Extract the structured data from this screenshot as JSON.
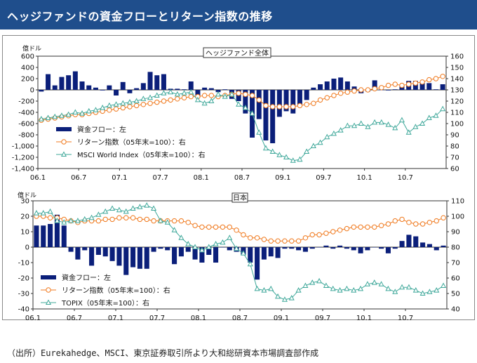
{
  "header": {
    "title": "ヘッジファンドの資金フローとリターン指数の推移"
  },
  "source_note": "（出所）Eurekahedge、MSCI、東京証券取引所より大和総研資本市場調査部作成",
  "colors": {
    "banner": "#1f4e8c",
    "bar": "#0b1f7a",
    "return_line": "#f07a1f",
    "index_line": "#3fa89a"
  },
  "chart_data": [
    {
      "type": "bar",
      "title": "ヘッジファンド全体",
      "yunit_left": "億ドル",
      "ylim_left": [
        -1400,
        600
      ],
      "yticks_left": [
        -1400,
        -1200,
        -1000,
        -800,
        -600,
        -400,
        -200,
        0,
        200,
        400,
        600
      ],
      "ylim_right": [
        60,
        160
      ],
      "yticks_right": [
        60,
        70,
        80,
        90,
        100,
        110,
        120,
        130,
        140,
        150,
        160
      ],
      "x_tick_labels": [
        "06.1",
        "06.7",
        "07.1",
        "07.7",
        "08.1",
        "08.7",
        "09.1",
        "09.7",
        "10.1",
        "10.7"
      ],
      "legend": [
        "資金フロー：左",
        "リターン指数（05年末=100）：右",
        "MSCI World Index（05年末=100）：右"
      ],
      "series": [
        {
          "name": "資金フロー：左",
          "axis": "left",
          "values": [
            -30,
            280,
            80,
            230,
            260,
            330,
            150,
            80,
            40,
            -10,
            80,
            -100,
            140,
            -60,
            30,
            120,
            320,
            260,
            280,
            20,
            20,
            10,
            150,
            -120,
            40,
            30,
            -40,
            10,
            -160,
            -200,
            -420,
            -850,
            -520,
            -900,
            -950,
            -480,
            -380,
            -420,
            -300,
            -180,
            40,
            100,
            150,
            200,
            220,
            150,
            60,
            -60,
            -30,
            170,
            0,
            -10,
            10,
            70,
            160,
            160,
            150,
            120,
            10,
            100
          ]
        },
        {
          "name": "リターン指数（05年末=100）：右",
          "axis": "right",
          "values": [
            103,
            104,
            105,
            106,
            107,
            108,
            108,
            109,
            110,
            111,
            112,
            113,
            114,
            115,
            116,
            117,
            118,
            119,
            120,
            121,
            122,
            123,
            124,
            124,
            125,
            125,
            124,
            125,
            126,
            127,
            126,
            125,
            121,
            116,
            115,
            115,
            115,
            115,
            116,
            117,
            118,
            121,
            123,
            125,
            127,
            128,
            129,
            130,
            130,
            131,
            132,
            134,
            135,
            134,
            135,
            136,
            137,
            139,
            140,
            142
          ]
        },
        {
          "name": "MSCI World Index（05年末=100）：右",
          "axis": "right",
          "values": [
            104,
            105,
            106,
            107,
            108,
            110,
            109,
            111,
            112,
            114,
            116,
            117,
            118,
            119,
            120,
            122,
            123,
            125,
            127,
            128,
            126,
            127,
            128,
            121,
            118,
            120,
            126,
            124,
            126,
            117,
            114,
            109,
            92,
            78,
            75,
            72,
            70,
            67,
            68,
            75,
            80,
            83,
            88,
            91,
            94,
            98,
            98,
            100,
            97,
            101,
            101,
            99,
            96,
            103,
            92,
            97,
            100,
            105,
            107,
            113
          ]
        }
      ]
    },
    {
      "type": "bar",
      "title": "日本",
      "yunit_left": "億ドル",
      "ylim_left": [
        -40,
        30
      ],
      "yticks_left": [
        -40,
        -30,
        -20,
        -10,
        0,
        10,
        20,
        30
      ],
      "ylim_right": [
        40,
        110
      ],
      "yticks_right": [
        40,
        50,
        60,
        70,
        80,
        90,
        100,
        110
      ],
      "x_tick_labels": [
        "06.1",
        "06.7",
        "07.1",
        "07.7",
        "08.1",
        "08.7",
        "09.1",
        "09.7",
        "10.1",
        "10.7"
      ],
      "legend": [
        "資金フロー：左",
        "リターン指数（05年末=100）：右",
        "TOPIX（05年末=100）：右"
      ],
      "series": [
        {
          "name": "資金フロー：左",
          "axis": "left",
          "values": [
            14,
            14,
            15,
            21,
            14,
            -3,
            -8,
            -2,
            -12,
            -5,
            -6,
            -9,
            -12,
            -18,
            -13,
            -14,
            -14,
            -3,
            -1,
            -2,
            -11,
            -6,
            -3,
            -8,
            -10,
            -5,
            -10,
            0,
            -2,
            -3,
            -5,
            -10,
            -21,
            -8,
            -6,
            -7,
            -1,
            -1,
            -2,
            -3,
            -1,
            0,
            1,
            -1,
            1,
            -1,
            -2,
            -4,
            -2,
            0,
            -1,
            -4,
            -1,
            4,
            8,
            7,
            3,
            2,
            -2,
            1
          ]
        },
        {
          "name": "リターン指数（05年末=100）：右",
          "axis": "right",
          "values": [
            100,
            100,
            99,
            99,
            98,
            97,
            96,
            97,
            97,
            97,
            98,
            98,
            99,
            99,
            99,
            98,
            98,
            97,
            97,
            97,
            97,
            97,
            96,
            94,
            93,
            93,
            93,
            93,
            93,
            91,
            88,
            86,
            86,
            85,
            84,
            84,
            84,
            84,
            84,
            86,
            88,
            88,
            89,
            90,
            91,
            92,
            93,
            93,
            93,
            93,
            94,
            95,
            97,
            98,
            96,
            95,
            95,
            96,
            97,
            99
          ]
        },
        {
          "name": "TOPIX（05年末=100）：右",
          "axis": "right",
          "values": [
            102,
            102,
            103,
            97,
            96,
            97,
            97,
            98,
            99,
            101,
            103,
            105,
            104,
            103,
            105,
            106,
            107,
            105,
            97,
            96,
            91,
            86,
            82,
            80,
            78,
            80,
            82,
            83,
            86,
            79,
            76,
            69,
            53,
            52,
            53,
            48,
            46,
            47,
            52,
            55,
            57,
            58,
            55,
            53,
            52,
            53,
            52,
            53,
            56,
            57,
            56,
            53,
            51,
            54,
            54,
            52,
            50,
            51,
            52,
            55
          ]
        }
      ]
    }
  ]
}
